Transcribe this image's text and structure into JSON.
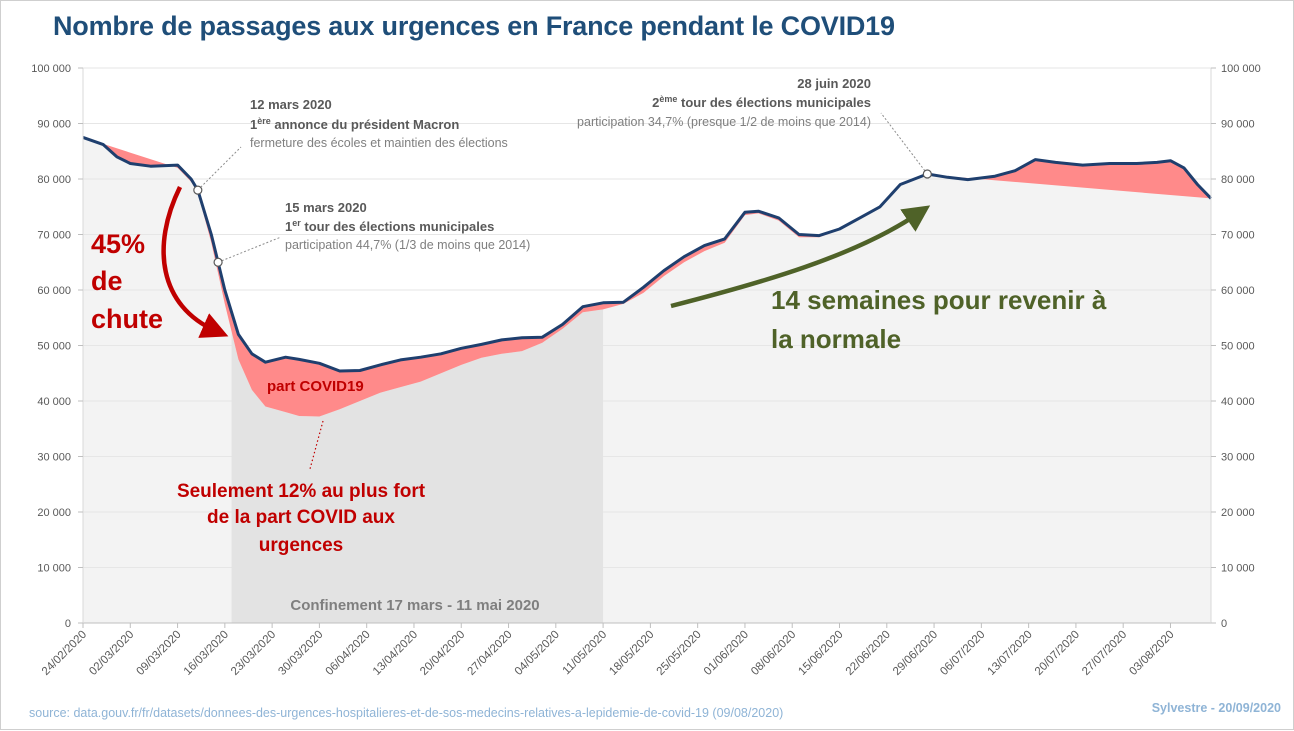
{
  "header": {
    "title": "Nombre de passages aux urgences en France pendant le COVID19"
  },
  "footer": {
    "source": "source: data.gouv.fr/fr/datasets/donnees-des-urgences-hospitalieres-et-de-sos-medecins-relatives-a-lepidemie-de-covid-19 (09/08/2020)",
    "author": "Sylvestre - 20/09/2020"
  },
  "colors": {
    "total_line": "#1f3f6e",
    "covid_fill": "#ff8a8a",
    "covid_text": "#c00000",
    "green": "#4f6228",
    "lockdown_band": "#e3e3e3",
    "plot_bg": "#f3f3f3",
    "annotation_gray": "#7f7f7f",
    "annotation_dark": "#595959"
  },
  "annotations": {
    "a1": {
      "date": "12 mars 2020",
      "sup": "ère",
      "line1_pre": "1",
      "line1_post": " annonce du président Macron",
      "line2": "fermeture des écoles et maintien des élections"
    },
    "a2": {
      "date": "15 mars 2020",
      "sup": "er",
      "line1_pre": "1",
      "line1_post": " tour des élections municipales",
      "line2": "participation 44,7% (1/3 de moins que 2014)"
    },
    "a3": {
      "date": "28 juin 2020",
      "sup": "ème",
      "line1_pre": "2",
      "line1_post": " tour des élections municipales",
      "line2": "participation 34,7% (presque 1/2 de moins que 2014)"
    },
    "drop": [
      "45%",
      "de",
      "chute"
    ],
    "recovery": [
      "14 semaines pour revenir à",
      "la normale"
    ],
    "covid_share": "part COVID19",
    "covid_note": [
      "Seulement 12% au plus fort",
      "de la part COVID aux",
      "urgences"
    ],
    "lockdown": "Confinement 17 mars - 11 mai 2020"
  },
  "chart_data": {
    "type": "area",
    "x_start": "24/02/2020",
    "x_end": "09/08/2020",
    "xtick_labels": [
      "24/02/2020",
      "02/03/2020",
      "09/03/2020",
      "16/03/2020",
      "23/03/2020",
      "30/03/2020",
      "06/04/2020",
      "13/04/2020",
      "20/04/2020",
      "27/04/2020",
      "04/05/2020",
      "11/05/2020",
      "18/05/2020",
      "25/05/2020",
      "01/06/2020",
      "08/06/2020",
      "15/06/2020",
      "22/06/2020",
      "29/06/2020",
      "06/07/2020",
      "13/07/2020",
      "20/07/2020",
      "27/07/2020",
      "03/08/2020"
    ],
    "ytick_labels": [
      "0",
      "10 000",
      "20 000",
      "30 000",
      "40 000",
      "50 000",
      "60 000",
      "70 000",
      "80 000",
      "90 000",
      "100 000"
    ],
    "ylim": [
      0,
      100000
    ],
    "yticks": [
      0,
      10000,
      20000,
      30000,
      40000,
      50000,
      60000,
      70000,
      80000,
      90000,
      100000
    ],
    "lockdown_period": [
      "17/03/2020",
      "11/05/2020"
    ],
    "markers": [
      "12/03/2020",
      "15/03/2020",
      "28/06/2020"
    ],
    "series": [
      {
        "name": "",
        "x": [
          "24/02/2020",
          "27/02/2020",
          "29/02/2020",
          "02/03/2020",
          "05/03/2020",
          "09/03/2020",
          "11/03/2020",
          "12/03/2020",
          "14/03/2020",
          "15/03/2020",
          "16/03/2020",
          "18/03/2020",
          "20/03/2020",
          "22/03/2020",
          "25/03/2020",
          "27/03/2020",
          "30/03/2020",
          "02/04/2020",
          "05/04/2020",
          "08/04/2020",
          "11/04/2020",
          "14/04/2020",
          "17/04/2020",
          "20/04/2020",
          "23/04/2020",
          "26/04/2020",
          "29/04/2020",
          "02/05/2020",
          "05/05/2020",
          "08/05/2020",
          "11/05/2020",
          "14/05/2020",
          "17/05/2020",
          "20/05/2020",
          "23/05/2020",
          "26/05/2020",
          "29/05/2020",
          "01/06/2020",
          "03/06/2020",
          "06/06/2020",
          "09/06/2020",
          "12/06/2020",
          "15/06/2020",
          "18/06/2020",
          "21/06/2020",
          "24/06/2020",
          "28/06/2020",
          "01/07/2020",
          "04/07/2020",
          "08/07/2020",
          "11/07/2020",
          "14/07/2020",
          "17/07/2020",
          "21/07/2020",
          "25/07/2020",
          "29/07/2020",
          "01/08/2020",
          "03/08/2020",
          "05/08/2020",
          "07/08/2020",
          "09/08/2020"
        ],
        "values": [
          87500,
          86200,
          84000,
          82800,
          82300,
          82500,
          80000,
          78000,
          70000,
          65000,
          60000,
          52000,
          48500,
          47000,
          47900,
          47500,
          46800,
          45400,
          45500,
          46500,
          47400,
          47900,
          48500,
          49500,
          50200,
          51000,
          51400,
          51500,
          53800,
          57000,
          57700,
          57800,
          60500,
          63500,
          66000,
          68000,
          69200,
          74000,
          74200,
          73000,
          70000,
          69800,
          71000,
          73000,
          75000,
          79000,
          80900,
          80300,
          79900,
          80500,
          81500,
          83500,
          83000,
          82500,
          82800,
          82800,
          83000,
          83300,
          82000,
          79000,
          76500
        ]
      },
      {
        "name": "",
        "x": [
          "24/02/2020",
          "09/03/2020",
          "11/03/2020",
          "12/03/2020",
          "14/03/2020",
          "15/03/2020",
          "16/03/2020",
          "18/03/2020",
          "20/03/2020",
          "22/03/2020",
          "25/03/2020",
          "27/03/2020",
          "30/03/2020",
          "02/04/2020",
          "05/04/2020",
          "08/04/2020",
          "11/04/2020",
          "14/04/2020",
          "17/04/2020",
          "20/04/2020",
          "23/04/2020",
          "26/04/2020",
          "29/04/2020",
          "02/05/2020",
          "05/05/2020",
          "08/05/2020",
          "11/05/2020",
          "14/05/2020",
          "17/05/2020",
          "20/05/2020",
          "23/05/2020",
          "26/05/2020",
          "29/05/2020",
          "01/06/2020",
          "03/06/2020",
          "06/06/2020",
          "09/06/2020",
          "12/06/2020",
          "15/06/2020",
          "18/06/2020",
          "21/06/2020",
          "24/06/2020",
          "28/06/2020",
          "09/08/2020"
        ],
        "values": [
          87500,
          82000,
          79500,
          77500,
          68500,
          63000,
          57500,
          47500,
          42000,
          39000,
          38000,
          37300,
          37200,
          38500,
          40000,
          41500,
          42500,
          43500,
          45000,
          46500,
          47800,
          48500,
          49000,
          50500,
          53000,
          56000,
          56500,
          57500,
          59500,
          62500,
          65000,
          67000,
          68500,
          73500,
          73800,
          72500,
          69500,
          69500,
          70800,
          72800,
          74800,
          78800,
          80800,
          76500
        ]
      }
    ],
    "approx_values": true
  }
}
